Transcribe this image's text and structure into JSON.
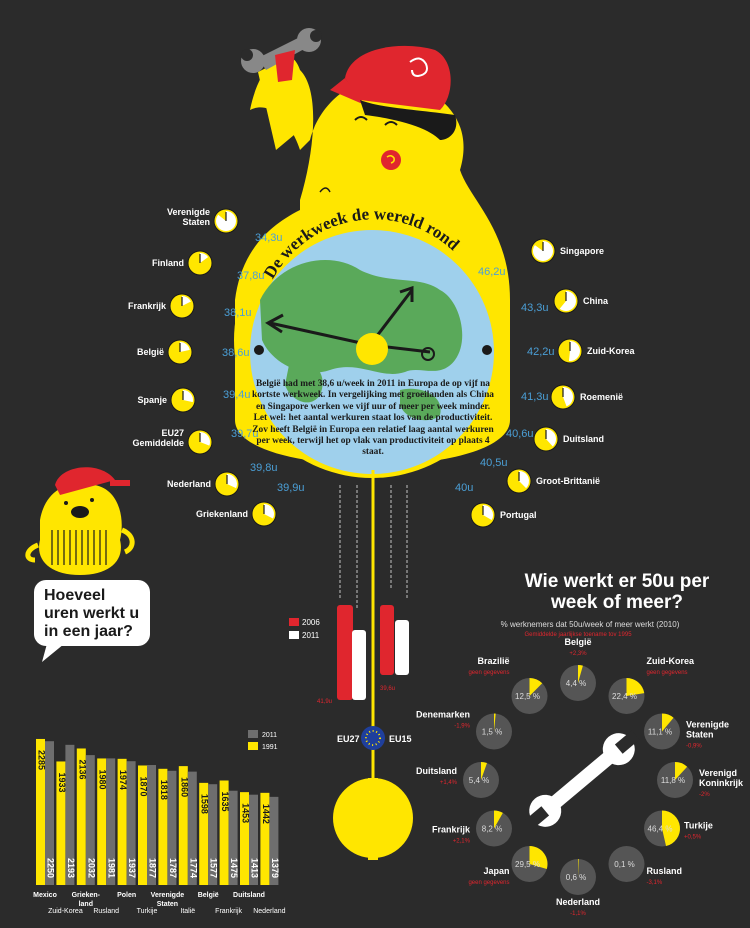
{
  "colors": {
    "background": "#2b2b2b",
    "yellow": "#ffe600",
    "blue_value": "#4b9fd6",
    "red": "#e0262e",
    "grey_bar": "#6e6e6e",
    "globe_land": "#5aa95a",
    "globe_sea": "#9fd0ec"
  },
  "icons": [
    "wrench-icon",
    "eu-flag-icon",
    "clock-icon",
    "pie-icon",
    "speech-bubble-icon"
  ],
  "clock": {
    "title_words": "De werkweek de wereld rond",
    "description": "België had met 38,6 u/week in 2011 in Europa de op vijf na kortste werkweek. In vergelijking met groeilanden als China en Singapore werken we vijf uur of meer per week minder. Let wel: het aantal werkuren staat los van de productiviteit. Zov heeft België in Europa een relatief laag aantal werkuren per week, terwijl het op vlak van productiviteit op plaats 4 staat."
  },
  "pendulum": {
    "legend_2006": "2006",
    "legend_2011": "2011",
    "eu27_label": "EU27",
    "eu15_label": "EU15",
    "eu27_value": "41,9u",
    "eu15_value": "39,6u"
  },
  "bubble": {
    "text": "Hoeveel uren werkt u in een jaar?"
  },
  "chart_data": [
    {
      "type": "bar",
      "title": "De werkweek de wereld rond",
      "series": [
        {
          "categories_left": [
            "Verenigde Staten",
            "Finland",
            "Frankrijk",
            "België",
            "Spanje",
            "EU27 Gemiddelde",
            "Nederland",
            "Griekenland"
          ],
          "values_left": [
            "34,3u",
            "37,8u",
            "38,1u",
            "38,6u",
            "39,4u",
            "39,7u",
            "39,8u",
            "39,9u"
          ],
          "categories_right": [
            "Singapore",
            "China",
            "Zuid-Korea",
            "Roemenië",
            "Duitsland",
            "Groot-Brittanië",
            "Portugal"
          ],
          "values_right": [
            "46,2u",
            "43,3u",
            "42,2u",
            "41,3u",
            "40,6u",
            "40,5u",
            "40u"
          ]
        }
      ]
    },
    {
      "type": "bar",
      "title": "Hoeveel uren werkt u in een jaar?",
      "legend": [
        "2011",
        "1991"
      ],
      "categories": [
        "Mexico",
        "Zuid-Korea",
        "Griekenland",
        "Rusland",
        "Polen",
        "Turkije",
        "Verenigde Staten",
        "Italië",
        "België",
        "Frankrijk",
        "Duitsland",
        "Nederland"
      ],
      "category_labels": [
        "Mexico",
        "Zuid-Korea",
        "Grieken-\nland",
        "Rusland",
        "Polen",
        "Turkije",
        "Verenigde\nStaten",
        "Italië",
        "België",
        "Frankrijk",
        "Duitsland",
        "Nederland"
      ],
      "series": [
        {
          "name": "1991",
          "values": [
            2285,
            1933,
            2136,
            1980,
            1974,
            1870,
            1818,
            1860,
            1598,
            1635,
            1453,
            1442
          ]
        },
        {
          "name": "2011",
          "values": [
            2250,
            2193,
            2032,
            1981,
            1937,
            1877,
            1787,
            1774,
            1577,
            1475,
            1413,
            1379
          ]
        }
      ],
      "ylim": [
        0,
        2300
      ]
    },
    {
      "type": "pie",
      "title": "Wie werkt er 50u per week of meer?",
      "subtitle": "% werknemers dat 50u/week of meer werkt (2010)",
      "note": "Gemiddelde jaarlijkse toename tov 1995",
      "slices": [
        {
          "country": "België",
          "change": "+2,3%",
          "value": 4.4,
          "label": "4,4 %"
        },
        {
          "country": "Zuid-Korea",
          "change": "geen gegevens",
          "value": 22.4,
          "label": "22,4 %"
        },
        {
          "country": "Verenigde Staten",
          "change": "-0,9%",
          "value": 11.1,
          "label": "11,1 %"
        },
        {
          "country": "Verenigd Koninkrijk",
          "change": "-2%",
          "value": 11.8,
          "label": "11,8 %"
        },
        {
          "country": "Turkije",
          "change": "+0,5%",
          "value": 46.4,
          "label": "46,4 %"
        },
        {
          "country": "Rusland",
          "change": "-3,1%",
          "value": 0.1,
          "label": "0,1 %"
        },
        {
          "country": "Nederland",
          "change": "-1,1%",
          "value": 0.6,
          "label": "0,6 %"
        },
        {
          "country": "Japan",
          "change": "geen gegevens",
          "value": 29.5,
          "label": "29,5 %"
        },
        {
          "country": "Frankrijk",
          "change": "+2,1%",
          "value": 8.2,
          "label": "8,2 %"
        },
        {
          "country": "Duitsland",
          "change": "+1,4%",
          "value": 5.4,
          "label": "5,4 %"
        },
        {
          "country": "Denemarken",
          "change": "-1,9%",
          "value": 1.5,
          "label": "1,5 %"
        },
        {
          "country": "Brazilië",
          "change": "geen gegevens",
          "value": 12.5,
          "label": "12,5 %"
        }
      ]
    }
  ]
}
